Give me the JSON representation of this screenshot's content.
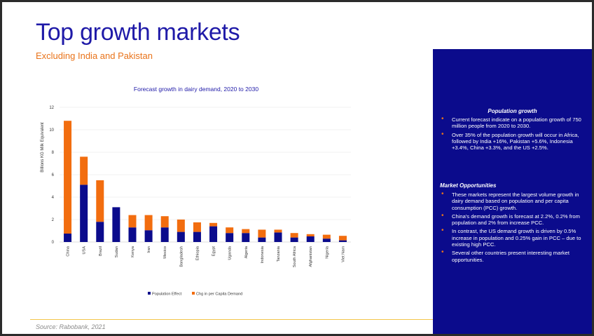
{
  "slide": {
    "title": "Top growth markets",
    "subtitle": "Excluding India and Pakistan",
    "source": "Source: Rabobank, 2021"
  },
  "colors": {
    "title": "#1f1aa8",
    "accent": "#e9731a",
    "panel": "#0b0b8c",
    "population": "#0b0b8c",
    "pcc": "#f26d0f"
  },
  "chart_data": {
    "type": "bar",
    "stacked": true,
    "title": "Forecast growth in dairy demand, 2020 to 2030",
    "xlabel": "",
    "ylabel": "Billions KG Milk Equivalent",
    "ylim": [
      0,
      12
    ],
    "yticks": [
      "0",
      "2",
      "4",
      "6",
      "8",
      "10",
      "12"
    ],
    "grid": true,
    "legend_position": "bottom",
    "categories": [
      "China",
      "USA",
      "Brazil",
      "Sudan",
      "Kenya",
      "Iran",
      "Mexico",
      "Bangladesh",
      "Ethiopia",
      "Egypt",
      "Uganda",
      "Algeria",
      "Indonesia",
      "Tanzania",
      "South Africa",
      "Afghanistan",
      "Nigeria",
      "Viet Nam"
    ],
    "series": [
      {
        "name": "Population Effect",
        "values": [
          0.75,
          5.1,
          1.8,
          3.1,
          1.3,
          1.05,
          1.3,
          0.9,
          0.9,
          1.4,
          0.8,
          0.8,
          0.4,
          0.85,
          0.4,
          0.5,
          0.3,
          0.15
        ]
      },
      {
        "name": "Chg in per Capita Demand",
        "values": [
          10.05,
          2.5,
          3.7,
          0.0,
          1.1,
          1.35,
          1.0,
          1.1,
          0.85,
          0.3,
          0.5,
          0.35,
          0.7,
          0.25,
          0.4,
          0.2,
          0.35,
          0.4
        ]
      }
    ]
  },
  "panel": {
    "heading1": "Population growth",
    "bullets1": [
      "Current forecast indicate on a population growth of 750 million people from 2020 to 2030.",
      "Over 35% of the population growth will occur in Africa, followed by India +16%, Pakistan +5.6%, Indonesia +3.4%, China +3.3%, and the US +2.5%."
    ],
    "heading2": "Market Opportunities",
    "bullets2": [
      "These markets represent the largest volume growth in dairy demand based on population and per capita consumption (PCC) growth.",
      "China's demand growth is forecast at 2.2%, 0.2% from population and 2% from increase PCC.",
      "In contrast, the US demand growth is driven by 0.5% increase in population and 0.25% gain in PCC – due to existing high PCC.",
      "Several other countries present interesting market opportunities."
    ]
  }
}
